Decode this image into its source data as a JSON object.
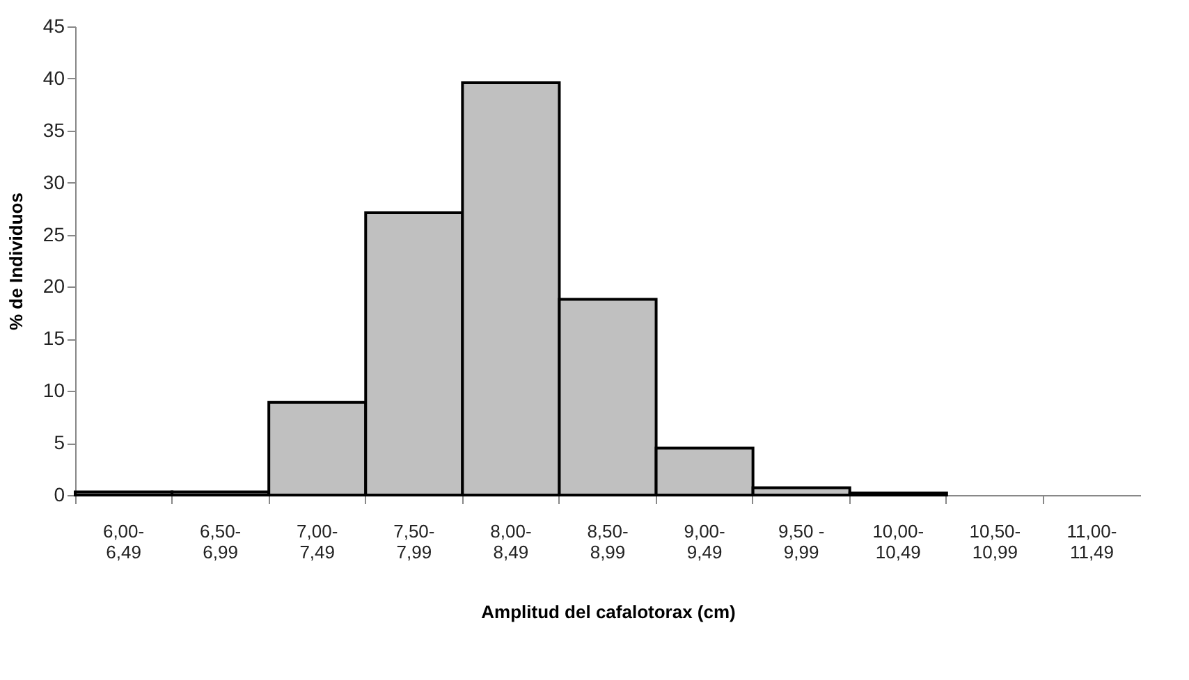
{
  "chart_data": {
    "type": "bar",
    "xlabel": "Amplitud  del cafalotorax  (cm)",
    "ylabel": "% de Individuos",
    "categories": [
      "6,00-\n6,49",
      "6,50-\n6,99",
      "7,00-\n7,49",
      "7,50-\n7,99",
      "8,00-\n8,49",
      "8,50-\n8,99",
      "9,00-\n9,49",
      "9,50 -\n9,99",
      "10,00-\n10,49",
      "10,50-\n10,99",
      "11,00-\n11,49"
    ],
    "values": [
      0.3,
      0.3,
      8.9,
      27.1,
      39.6,
      18.8,
      4.5,
      0.7,
      0.2,
      0,
      0
    ],
    "color": "#c0c0c0",
    "ylim": [
      0,
      45
    ],
    "yticks": [
      0,
      5,
      10,
      15,
      20,
      25,
      30,
      35,
      40,
      45
    ],
    "grid": false
  }
}
